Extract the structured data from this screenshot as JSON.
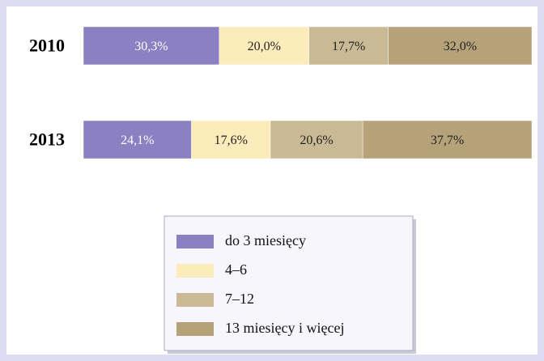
{
  "chart_data": {
    "type": "stacked-bar-horizontal",
    "categories": [
      "2010",
      "2013"
    ],
    "series": [
      {
        "name": "do 3 miesięcy",
        "color": "#8b80c1",
        "values": [
          30.3,
          24.1
        ],
        "value_labels": [
          "30,3%",
          "24,1%"
        ]
      },
      {
        "name": "4–6",
        "color": "#fcecbb",
        "values": [
          20.0,
          17.6
        ],
        "value_labels": [
          "20,0%",
          "17,6%"
        ]
      },
      {
        "name": "7–12",
        "color": "#c9b994",
        "values": [
          17.7,
          20.6
        ],
        "value_labels": [
          "17,7%",
          "20,6%"
        ]
      },
      {
        "name": "13 miesięcy i więcej",
        "color": "#b5a278",
        "values": [
          32.0,
          37.7
        ],
        "value_labels": [
          "32,0%",
          "37,7%"
        ]
      }
    ]
  }
}
